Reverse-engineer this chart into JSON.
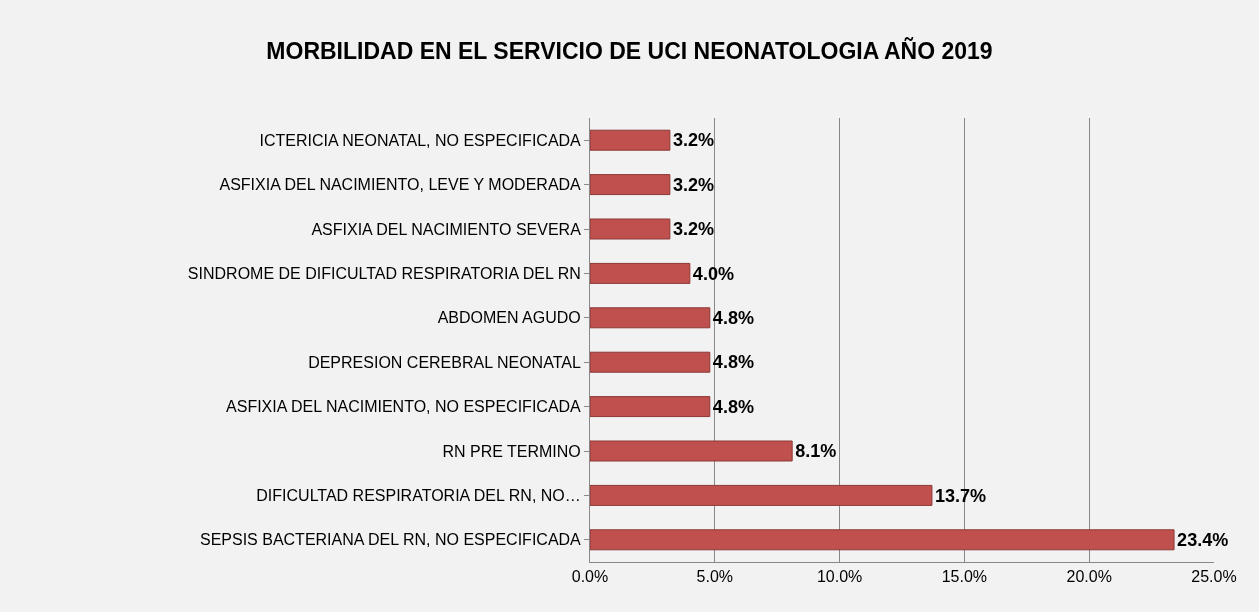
{
  "chart_data": {
    "type": "bar",
    "orientation": "horizontal",
    "title": "MORBILIDAD EN EL SERVICIO DE UCI NEONATOLOGIA AÑO 2019",
    "categories": [
      "ICTERICIA NEONATAL, NO ESPECIFICADA",
      "ASFIXIA DEL NACIMIENTO, LEVE Y MODERADA",
      "ASFIXIA DEL NACIMIENTO SEVERA",
      "SINDROME DE DIFICULTAD RESPIRATORIA DEL RN",
      "ABDOMEN AGUDO",
      "DEPRESION CEREBRAL NEONATAL",
      "ASFIXIA DEL NACIMIENTO, NO ESPECIFICADA",
      "RN PRE TERMINO",
      "DIFICULTAD RESPIRATORIA DEL RN, NO…",
      "SEPSIS BACTERIANA DEL RN, NO ESPECIFICADA"
    ],
    "values": [
      3.2,
      3.2,
      3.2,
      4.0,
      4.8,
      4.8,
      4.8,
      8.1,
      13.7,
      23.4
    ],
    "value_labels": [
      "3.2%",
      "3.2%",
      "3.2%",
      "4.0%",
      "4.8%",
      "4.8%",
      "4.8%",
      "8.1%",
      "13.7%",
      "23.4%"
    ],
    "color": "#c0504d",
    "xlim": [
      0,
      25
    ],
    "xticks": [
      {
        "value": 0,
        "label": "0.0%"
      },
      {
        "value": 5,
        "label": "5.0%"
      },
      {
        "value": 10,
        "label": "10.0%"
      },
      {
        "value": 15,
        "label": "15.0%"
      },
      {
        "value": 20,
        "label": "20.0%"
      },
      {
        "value": 25,
        "label": "25.0%"
      }
    ],
    "grid": "x"
  }
}
